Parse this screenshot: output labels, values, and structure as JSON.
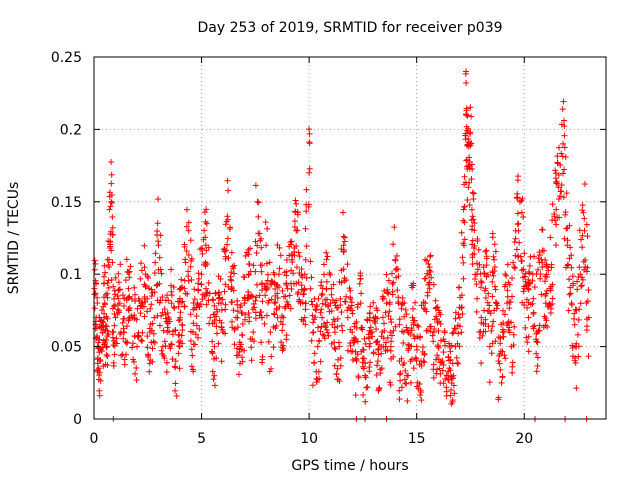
{
  "chart_data": {
    "type": "scatter",
    "title": "Day 253 of 2019, SRMTID for receiver p039",
    "xlabel": "GPS time / hours",
    "ylabel": "SRMTID / TECUs",
    "xlim": [
      0,
      23.8
    ],
    "ylim": [
      0,
      0.25
    ],
    "xticks": [
      0,
      5,
      10,
      15,
      20
    ],
    "xtick_labels": [
      "0",
      "5",
      "10",
      "15",
      "20"
    ],
    "yticks": [
      0,
      0.05,
      0.1,
      0.15,
      0.2,
      0.25
    ],
    "ytick_labels": [
      "0",
      "0.05",
      "0.1",
      "0.15",
      "0.2",
      "0.25"
    ],
    "grid": true,
    "marker": "+",
    "series_color": "#ff0000",
    "series": [
      {
        "name": "SRMTID",
        "x": [
          0.02,
          0.1,
          0.2,
          0.3,
          0.4,
          0.5,
          0.6,
          0.7,
          0.8,
          0.9,
          1.0,
          1.2,
          1.4,
          1.6,
          1.8,
          2.0,
          2.2,
          2.4,
          2.6,
          2.8,
          3.0,
          3.2,
          3.4,
          3.6,
          3.8,
          4.0,
          4.2,
          4.4,
          4.6,
          4.8,
          5.0,
          5.2,
          5.4,
          5.6,
          5.8,
          6.0,
          6.2,
          6.4,
          6.6,
          6.8,
          7.0,
          7.2,
          7.4,
          7.6,
          7.8,
          8.0,
          8.2,
          8.4,
          8.6,
          8.8,
          9.0,
          9.2,
          9.4,
          9.6,
          9.8,
          10.0,
          10.2,
          10.4,
          10.6,
          10.8,
          11.0,
          11.2,
          11.4,
          11.6,
          11.8,
          12.0,
          12.2,
          12.4,
          12.6,
          12.8,
          13.0,
          13.2,
          13.4,
          13.6,
          13.8,
          14.0,
          14.2,
          14.4,
          14.6,
          14.8,
          15.0,
          15.2,
          15.4,
          15.6,
          15.8,
          16.0,
          16.2,
          16.4,
          16.6,
          16.8,
          17.0,
          17.2,
          17.3,
          17.4,
          17.5,
          17.6,
          17.8,
          18.0,
          18.2,
          18.4,
          18.6,
          18.8,
          19.0,
          19.2,
          19.4,
          19.6,
          19.8,
          20.0,
          20.2,
          20.4,
          20.6,
          20.8,
          21.0,
          21.2,
          21.4,
          21.6,
          21.8,
          22.0,
          22.2,
          22.4,
          22.6,
          22.8,
          23.0
        ],
        "y": [
          0.09,
          0.07,
          0.05,
          0.04,
          0.06,
          0.08,
          0.05,
          0.11,
          0.15,
          0.06,
          0.07,
          0.08,
          0.06,
          0.09,
          0.07,
          0.05,
          0.08,
          0.1,
          0.06,
          0.07,
          0.12,
          0.05,
          0.06,
          0.08,
          0.04,
          0.07,
          0.09,
          0.13,
          0.06,
          0.08,
          0.1,
          0.12,
          0.07,
          0.05,
          0.08,
          0.06,
          0.14,
          0.09,
          0.07,
          0.05,
          0.08,
          0.1,
          0.06,
          0.15,
          0.07,
          0.12,
          0.06,
          0.08,
          0.1,
          0.07,
          0.09,
          0.11,
          0.13,
          0.08,
          0.1,
          0.17,
          0.06,
          0.05,
          0.07,
          0.09,
          0.08,
          0.06,
          0.05,
          0.12,
          0.07,
          0.06,
          0.04,
          0.08,
          0.03,
          0.05,
          0.07,
          0.04,
          0.06,
          0.08,
          0.05,
          0.11,
          0.04,
          0.06,
          0.03,
          0.07,
          0.05,
          0.04,
          0.08,
          0.09,
          0.06,
          0.05,
          0.04,
          0.03,
          0.02,
          0.05,
          0.07,
          0.12,
          0.21,
          0.16,
          0.19,
          0.14,
          0.1,
          0.07,
          0.09,
          0.05,
          0.11,
          0.04,
          0.06,
          0.08,
          0.05,
          0.13,
          0.15,
          0.09,
          0.07,
          0.1,
          0.06,
          0.11,
          0.08,
          0.09,
          0.14,
          0.16,
          0.19,
          0.12,
          0.08,
          0.05,
          0.1,
          0.13,
          0.07
        ],
        "extra_points": [
          {
            "x": 0.9,
            "y": 0.0
          },
          {
            "x": 12.2,
            "y": 0.0
          },
          {
            "x": 12.6,
            "y": 0.0
          },
          {
            "x": 13.6,
            "y": 0.0
          },
          {
            "x": 20.5,
            "y": 0.0
          },
          {
            "x": 21.9,
            "y": 0.0
          },
          {
            "x": 22.9,
            "y": 0.0
          }
        ]
      }
    ]
  }
}
